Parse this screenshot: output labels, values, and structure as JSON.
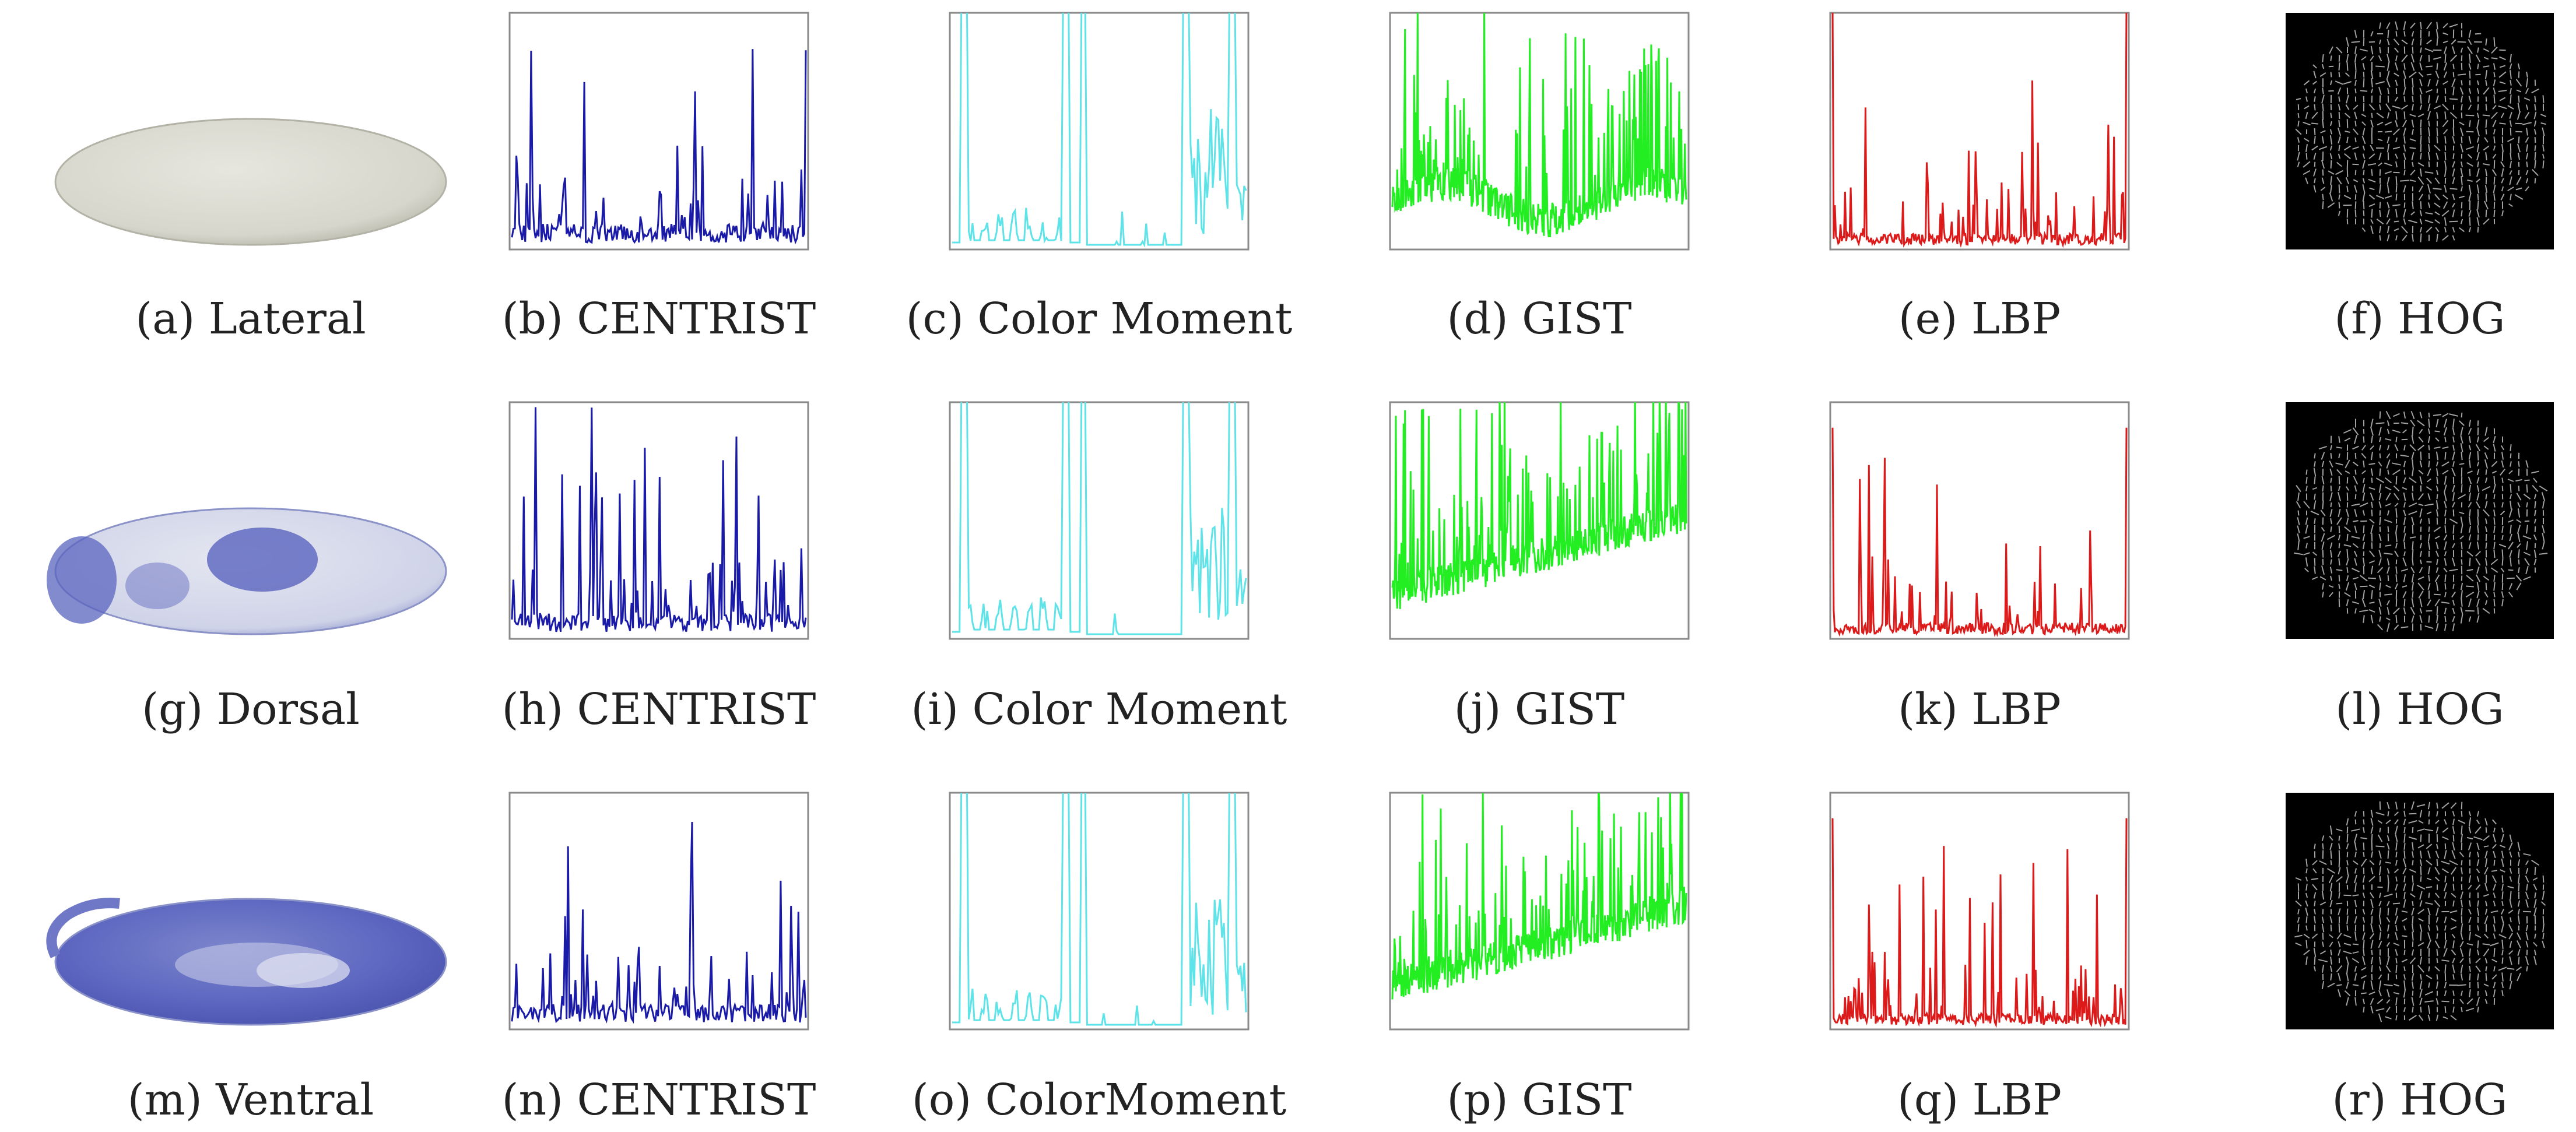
{
  "figure": {
    "rows": [
      {
        "view": "lateral",
        "embryo_stain": "none",
        "panels": [
          {
            "id": "a",
            "caption": "(a) Lateral",
            "type": "embryo-image"
          },
          {
            "id": "b",
            "caption": "(b) CENTRIST",
            "type": "feature-plot",
            "feature": "centrist"
          },
          {
            "id": "c",
            "caption": "(c) Color Moment",
            "type": "feature-plot",
            "feature": "color-moment"
          },
          {
            "id": "d",
            "caption": "(d) GIST",
            "type": "feature-plot",
            "feature": "gist"
          },
          {
            "id": "e",
            "caption": "(e) LBP",
            "type": "feature-plot",
            "feature": "lbp"
          },
          {
            "id": "f",
            "caption": "(f) HOG",
            "type": "hog-image"
          }
        ]
      },
      {
        "view": "dorsal",
        "embryo_stain": "blue-patches",
        "panels": [
          {
            "id": "g",
            "caption": "(g) Dorsal",
            "type": "embryo-image"
          },
          {
            "id": "h",
            "caption": "(h) CENTRIST",
            "type": "feature-plot",
            "feature": "centrist"
          },
          {
            "id": "i",
            "caption": "(i) Color Moment",
            "type": "feature-plot",
            "feature": "color-moment"
          },
          {
            "id": "j",
            "caption": "(j) GIST",
            "type": "feature-plot",
            "feature": "gist"
          },
          {
            "id": "k",
            "caption": "(k) LBP",
            "type": "feature-plot",
            "feature": "lbp"
          },
          {
            "id": "l",
            "caption": "(l) HOG",
            "type": "hog-image"
          }
        ]
      },
      {
        "view": "ventral",
        "embryo_stain": "blue-full",
        "panels": [
          {
            "id": "m",
            "caption": "(m) Ventral",
            "type": "embryo-image"
          },
          {
            "id": "n",
            "caption": "(n) CENTRIST",
            "type": "feature-plot",
            "feature": "centrist"
          },
          {
            "id": "o",
            "caption": "(o) ColorMoment",
            "type": "feature-plot",
            "feature": "color-moment"
          },
          {
            "id": "p",
            "caption": "(p) GIST",
            "type": "feature-plot",
            "feature": "gist"
          },
          {
            "id": "q",
            "caption": "(q) LBP",
            "type": "feature-plot",
            "feature": "lbp"
          },
          {
            "id": "r",
            "caption": "(r) HOG",
            "type": "hog-image"
          }
        ]
      }
    ],
    "colors": {
      "centrist": "#1a1aa8",
      "color-moment": "#5ee3e8",
      "gist": "#22ee22",
      "lbp": "#dd1a1a",
      "hog_background": "#000000",
      "hog_stroke": "#d8d8d8",
      "plot_border": "#8a8a8a",
      "embryo_plain": "#d8d8cf",
      "embryo_blue": "#5a64bf"
    }
  }
}
